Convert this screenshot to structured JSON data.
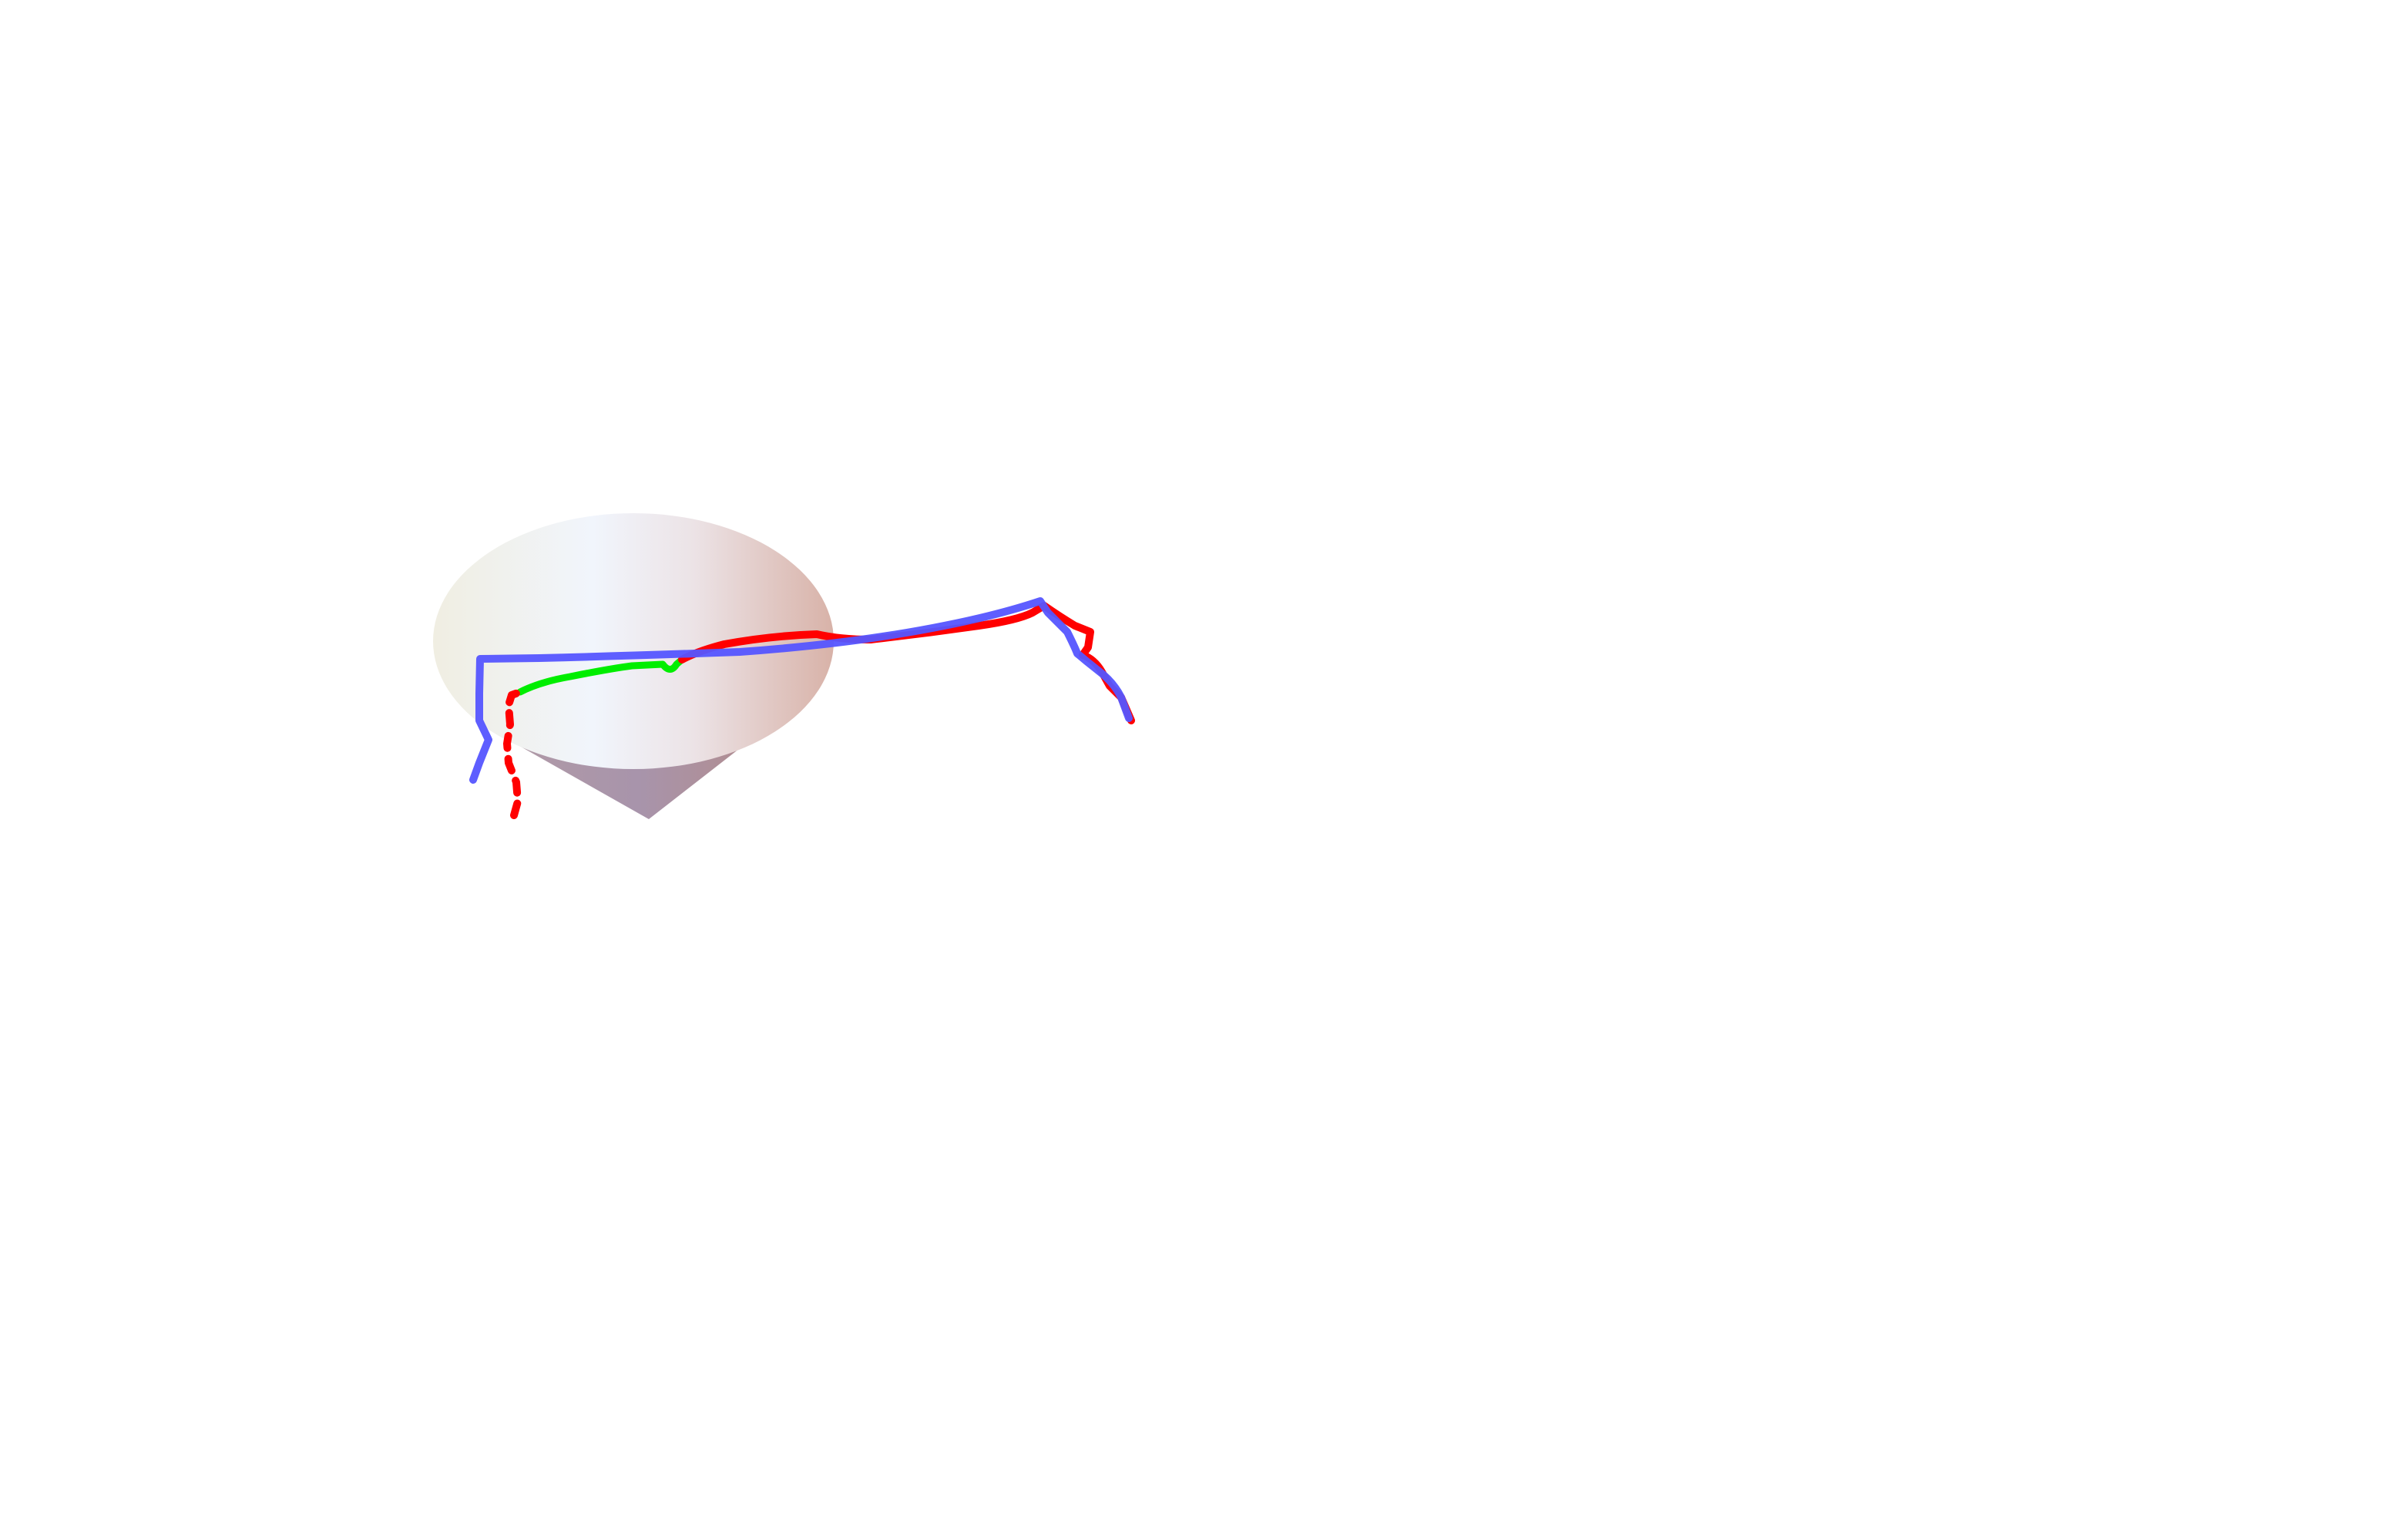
{
  "scene": {
    "background_color": "#ffffff",
    "object": {
      "shape": "cone",
      "surface_colors": {
        "left": "#f2f0e6",
        "center": "#f2f6fc",
        "right": "#dcb8b0",
        "side_shadow": "#a592a8"
      }
    },
    "trajectories": [
      {
        "color": "#5555ff"
      },
      {
        "color": "#ff0000"
      },
      {
        "color": "#00ee00"
      }
    ]
  }
}
